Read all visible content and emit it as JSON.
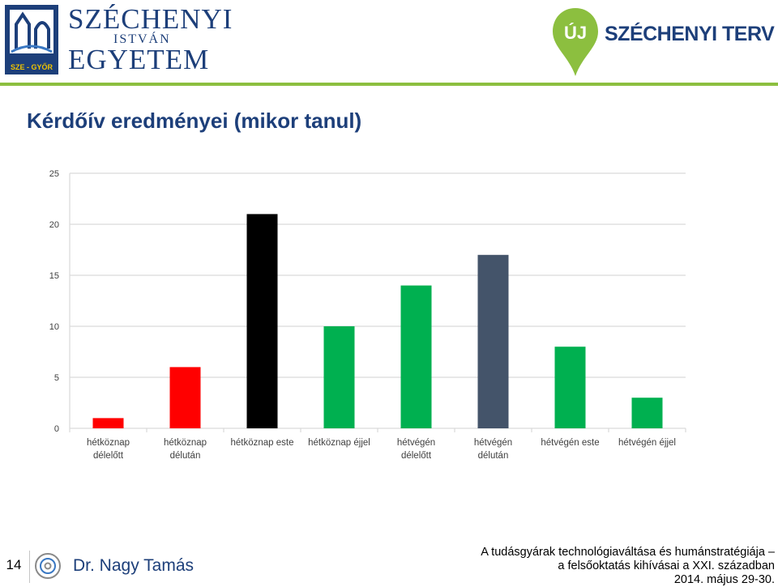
{
  "header": {
    "left_logo": {
      "line1": "SZÉCHENYI",
      "line2": "ISTVÁN",
      "line3": "EGYETEM",
      "badge": "SZE - GYŐR"
    },
    "right_logo": {
      "pin_text": "ÚJ",
      "name": "SZÉCHENYI TERV"
    }
  },
  "title": "Kérdőív eredményei (mikor tanul)",
  "colors": {
    "red": "#ff0000",
    "black": "#000000",
    "green": "#00b050",
    "slate": "#44546a",
    "accent": "#8cbf3f",
    "navy": "#1d3f7a"
  },
  "chart_data": {
    "type": "bar",
    "title": "",
    "xlabel": "",
    "ylabel": "",
    "ylim": [
      0,
      25
    ],
    "yticks": [
      0,
      5,
      10,
      15,
      20,
      25
    ],
    "grid": true,
    "categories": [
      [
        "hétköznap",
        "délelőtt"
      ],
      [
        "hétköznap",
        "délután"
      ],
      [
        "hétköznap este"
      ],
      [
        "hétköznap éjjel"
      ],
      [
        "hétvégén",
        "délelőtt"
      ],
      [
        "hétvégén",
        "délután"
      ],
      [
        "hétvégén este"
      ],
      [
        "hétvégén éjjel"
      ]
    ],
    "values": [
      1,
      6,
      21,
      10,
      14,
      17,
      8,
      3
    ],
    "bar_colors": [
      "#ff0000",
      "#ff0000",
      "#000000",
      "#00b050",
      "#00b050",
      "#44546a",
      "#00b050",
      "#00b050"
    ]
  },
  "footer": {
    "page_number": "14",
    "author": "Dr. Nagy Tamás",
    "line1": "A tudásgyárak technológiaváltása és humánstratégiája –",
    "line2": "a felsőoktatás kihívásai a XXI. században",
    "line3": "2014. május 29-30."
  }
}
